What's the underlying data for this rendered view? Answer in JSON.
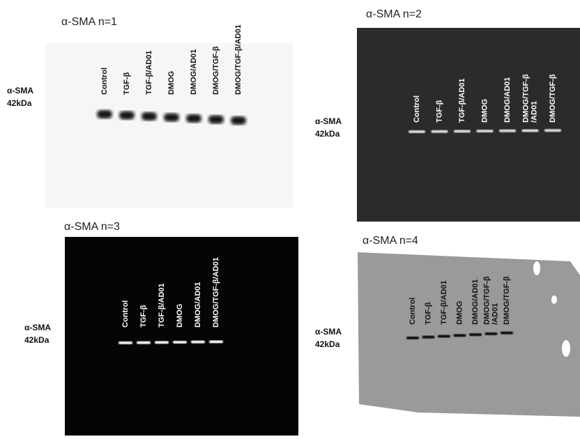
{
  "panels": [
    {
      "title": "α-SMA n=1",
      "marker": [
        "α-SMA",
        "42kDa"
      ],
      "lanes": [
        [
          "Control"
        ],
        [
          "TGF-β"
        ],
        [
          "TGF-β/AD01"
        ],
        [
          "DMOG"
        ],
        [
          "DMOG/AD01"
        ],
        [
          "DMOG/TGF-β"
        ],
        [
          "DMOG/TGF-β/AD01"
        ]
      ]
    },
    {
      "title": "α-SMA n=2",
      "marker": [
        "α-SMA",
        "42kDa"
      ],
      "lanes": [
        [
          "Control"
        ],
        [
          "TGF-β"
        ],
        [
          "TGF-β/AD01"
        ],
        [
          "DMOG"
        ],
        [
          "DMOG/AD01"
        ],
        [
          "DMOG/TGF-β",
          "/AD01"
        ],
        [
          "DMOG/TGF-β"
        ]
      ]
    },
    {
      "title": "α-SMA n=3",
      "marker": [
        "α-SMA",
        "42kDa"
      ],
      "lanes": [
        [
          "Control"
        ],
        [
          "TGF-β"
        ],
        [
          "TGF-β/AD01"
        ],
        [
          "DMOG"
        ],
        [
          "DMOG/AD01"
        ],
        [
          "DMOG/TGF-β/AD01"
        ]
      ]
    },
    {
      "title": "α-SMA n=4",
      "marker": [
        "α-SMA",
        "42kDa"
      ],
      "lanes": [
        [
          "Control"
        ],
        [
          "TGF-β"
        ],
        [
          "TGF-β/AD01"
        ],
        [
          "DMOG"
        ],
        [
          "DMOG/AD01"
        ],
        [
          "DMOG/TGF-β",
          "/AD01"
        ],
        [
          "DMOG/TGF-β"
        ]
      ]
    }
  ]
}
